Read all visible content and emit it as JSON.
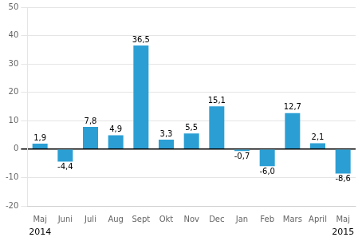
{
  "chart_data": {
    "type": "bar",
    "categories": [
      "Maj",
      "Juni",
      "Juli",
      "Aug",
      "Sept",
      "Okt",
      "Nov",
      "Dec",
      "Jan",
      "Feb",
      "Mars",
      "April",
      "Maj"
    ],
    "values": [
      1.9,
      -4.4,
      7.8,
      4.9,
      36.5,
      3.3,
      5.5,
      15.1,
      -0.7,
      -6.0,
      12.7,
      2.1,
      -8.6
    ],
    "value_labels": [
      "1,9",
      "-4,4",
      "7,8",
      "4,9",
      "36,5",
      "3,3",
      "5,5",
      "15,1",
      "-0,7",
      "-6,0",
      "12,7",
      "2,1",
      "-8,6"
    ],
    "data_labels": true,
    "color": "#2b9fd4",
    "ylim": [
      -20,
      50
    ],
    "yticks": [
      -20,
      -10,
      0,
      10,
      20,
      30,
      40,
      50
    ],
    "grid": true,
    "annotations": [
      {
        "text": "2014",
        "x": 0
      },
      {
        "text": "2015",
        "x": 12
      }
    ]
  }
}
